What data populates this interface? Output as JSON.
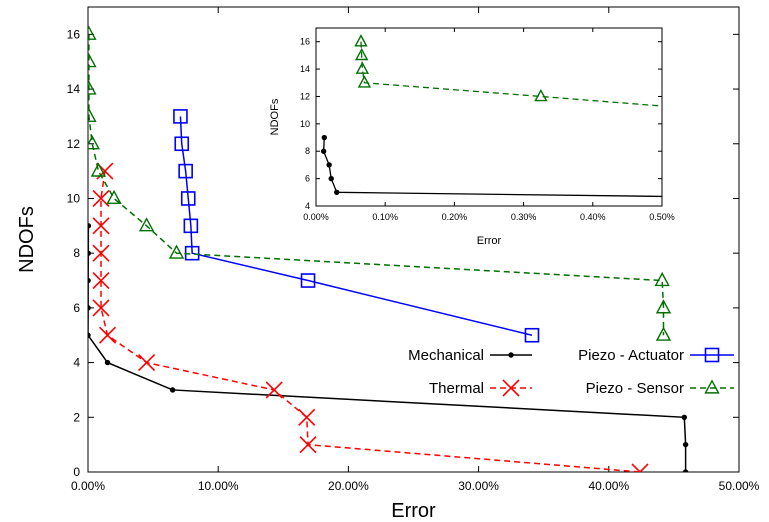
{
  "chart_data": [
    {
      "type": "line",
      "xlabel": "Error",
      "ylabel": "NDOFs",
      "xlim": [
        0,
        50
      ],
      "ylim": [
        0,
        17
      ],
      "x_unit": "%",
      "xticks": [
        "0.00%",
        "10.00%",
        "20.00%",
        "30.00%",
        "40.00%",
        "50.00%"
      ],
      "yticks": [
        "0",
        "2",
        "4",
        "6",
        "8",
        "10",
        "12",
        "14",
        "16"
      ],
      "grid": false,
      "legend_position": "bottom-right",
      "series": [
        {
          "name": "Mechanical",
          "color": "#000000",
          "marker": "dot",
          "dash": "solid",
          "points": [
            [
              0.03,
              9
            ],
            [
              0.02,
              8
            ],
            [
              0.01,
              7
            ],
            [
              0.01,
              6
            ],
            [
              0.0,
              5
            ],
            [
              1.5,
              4
            ],
            [
              6.5,
              3
            ],
            [
              45.8,
              2
            ],
            [
              45.9,
              1
            ],
            [
              45.9,
              0
            ]
          ]
        },
        {
          "name": "Thermal",
          "color": "#ff0000",
          "marker": "x",
          "dash": "dashed",
          "points": [
            [
              1.3,
              11
            ],
            [
              1.0,
              10
            ],
            [
              1.0,
              9
            ],
            [
              1.0,
              8
            ],
            [
              1.0,
              7
            ],
            [
              1.0,
              6
            ],
            [
              1.5,
              5
            ],
            [
              4.5,
              4
            ],
            [
              14.3,
              3
            ],
            [
              16.8,
              2
            ],
            [
              16.9,
              1
            ],
            [
              42.4,
              0
            ]
          ]
        },
        {
          "name": "Piezo - Actuator",
          "color": "#0000ff",
          "marker": "square",
          "dash": "solid",
          "points": [
            [
              7.1,
              13
            ],
            [
              7.2,
              12
            ],
            [
              7.5,
              11
            ],
            [
              7.7,
              10
            ],
            [
              7.9,
              9
            ],
            [
              8.0,
              8
            ],
            [
              16.9,
              7
            ],
            [
              34.1,
              5
            ]
          ]
        },
        {
          "name": "Piezo - Sensor",
          "color": "#007000",
          "marker": "triangle",
          "dash": "dashed",
          "points": [
            [
              0.07,
              16
            ],
            [
              0.07,
              15
            ],
            [
              0.07,
              14
            ],
            [
              0.07,
              13
            ],
            [
              0.33,
              12
            ],
            [
              0.8,
              11
            ],
            [
              2.0,
              10
            ],
            [
              4.5,
              9
            ],
            [
              6.8,
              8
            ],
            [
              44.1,
              7
            ],
            [
              44.2,
              6
            ],
            [
              44.2,
              5
            ]
          ]
        }
      ]
    },
    {
      "type": "line",
      "xlabel": "Error",
      "ylabel": "NDOFs",
      "xlim": [
        0,
        0.5
      ],
      "ylim": [
        4,
        17
      ],
      "x_unit": "%",
      "xticks": [
        "0.00%",
        "0.10%",
        "0.20%",
        "0.30%",
        "0.40%",
        "0.50%"
      ],
      "yticks": [
        "4",
        "6",
        "8",
        "10",
        "12",
        "14",
        "16"
      ],
      "grid": false,
      "series": [
        {
          "name": "Mechanical",
          "color": "#000000",
          "marker": "dot",
          "dash": "solid",
          "points": [
            [
              0.012,
              9
            ],
            [
              0.011,
              8
            ],
            [
              0.019,
              7
            ],
            [
              0.022,
              6
            ],
            [
              0.03,
              5
            ],
            [
              0.5,
              4.7
            ]
          ]
        },
        {
          "name": "Piezo - Sensor",
          "color": "#007000",
          "marker": "triangle",
          "dash": "dashed",
          "points": [
            [
              0.065,
              16
            ],
            [
              0.066,
              15
            ],
            [
              0.067,
              14
            ],
            [
              0.07,
              13
            ],
            [
              0.325,
              12
            ],
            [
              0.5,
              11.3
            ]
          ]
        }
      ]
    }
  ]
}
